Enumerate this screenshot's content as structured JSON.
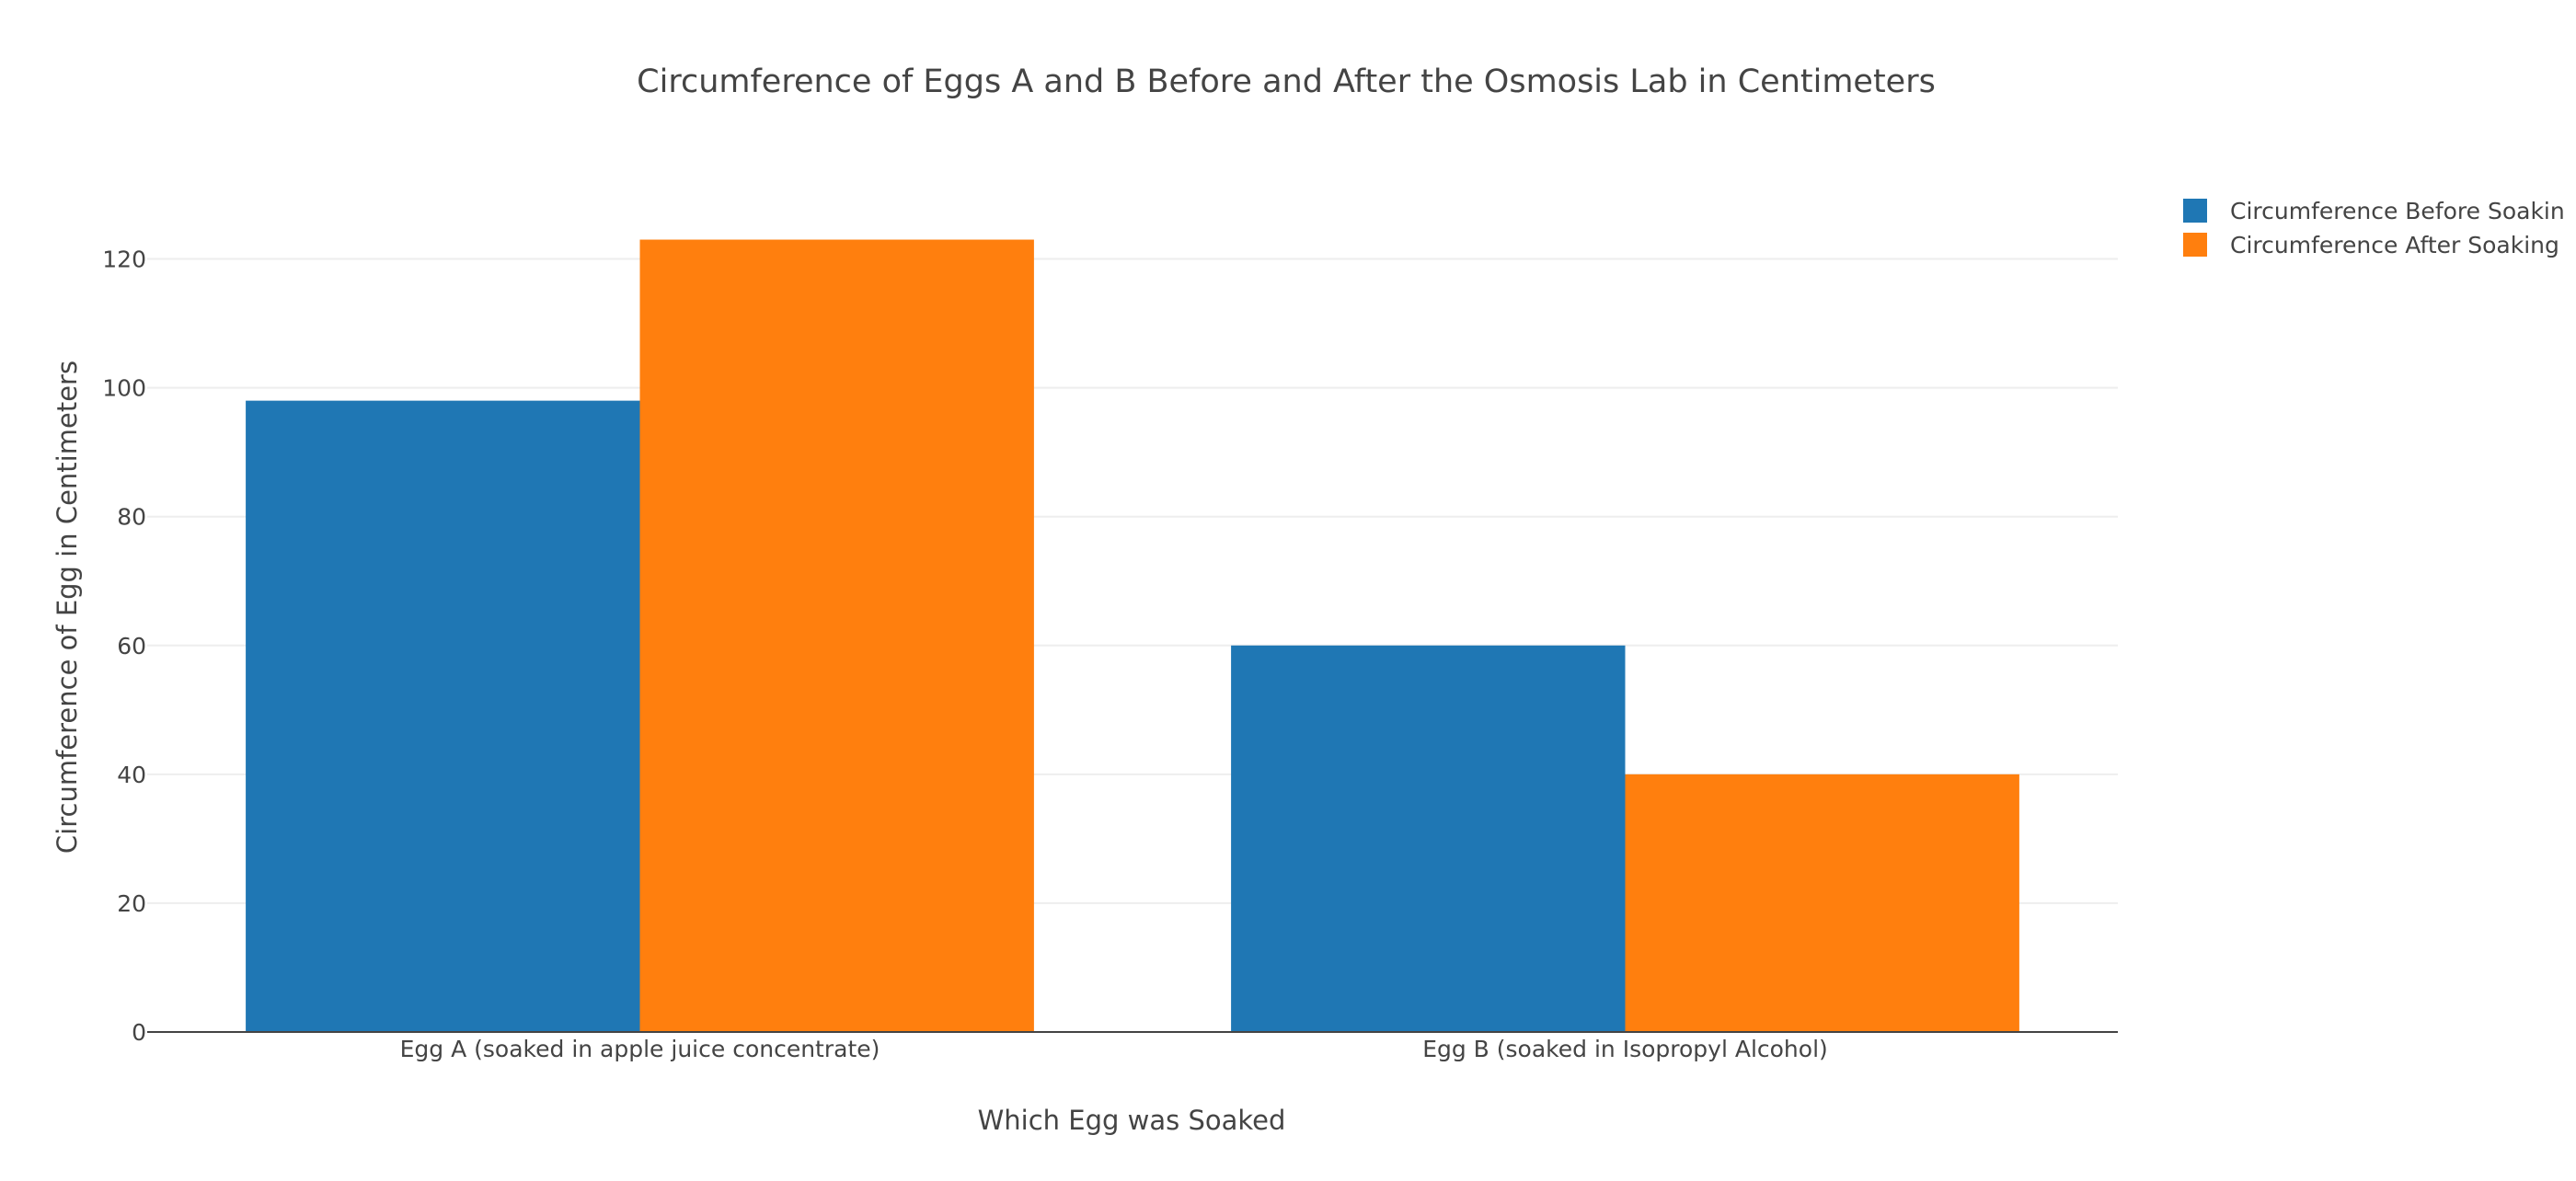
{
  "chart_data": {
    "type": "bar",
    "title": "Circumference of Eggs A and B Before and After the Osmosis Lab in Centimeters",
    "xlabel": "Which Egg was Soaked",
    "ylabel": "Circumference of Egg in Centimeters",
    "categories": [
      "Egg A (soaked in apple juice concentrate)",
      "Egg B (soaked in Isopropyl Alcohol)"
    ],
    "series": [
      {
        "name": "Circumference Before Soakin",
        "values": [
          98,
          60
        ],
        "color": "#1f77b4"
      },
      {
        "name": "Circumference After Soaking",
        "values": [
          123,
          40
        ],
        "color": "#ff7f0e"
      }
    ],
    "ylim": [
      0,
      129.5
    ],
    "yticks": [
      0,
      20,
      40,
      60,
      80,
      100,
      120
    ],
    "grid": true,
    "legend": "top-right",
    "barmode": "group"
  }
}
